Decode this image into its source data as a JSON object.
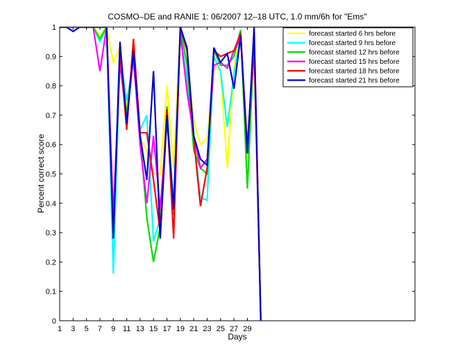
{
  "chart_data": {
    "type": "line",
    "title": "COSMO–DE and RANIE 1: 06/2007 12–18 UTC, 1.0 mm/6h for \"Ems\"",
    "xlabel": "Days",
    "ylabel": "Percent correct score",
    "xlim": [
      1,
      54
    ],
    "ylim": [
      0,
      1
    ],
    "xticks": [
      1,
      3,
      5,
      7,
      9,
      11,
      13,
      15,
      17,
      19,
      21,
      23,
      25,
      27,
      29
    ],
    "yticks": [
      0,
      0.1,
      0.2,
      0.3,
      0.4,
      0.5,
      0.6,
      0.7,
      0.8,
      0.9,
      1
    ],
    "ytick_labels": [
      "0",
      "0.1",
      "0.2",
      "0.3",
      "0.4",
      "0.5",
      "0.6",
      "0.7",
      "0.8",
      "0.9",
      "1"
    ],
    "legend_position": "top-right",
    "x": [
      1,
      2,
      3,
      4,
      5,
      6,
      7,
      8,
      9,
      10,
      11,
      12,
      13,
      14,
      15,
      16,
      17,
      18,
      19,
      20,
      21,
      22,
      23,
      24,
      25,
      26,
      27,
      28,
      29,
      30,
      31
    ],
    "series": [
      {
        "name": "forecast started 6 hrs before",
        "color": "#ffff00",
        "values": [
          1,
          1,
          1,
          1,
          1,
          1,
          0.97,
          1,
          0.88,
          0.93,
          0.72,
          0.9,
          0.62,
          0.58,
          0.5,
          0.5,
          0.8,
          0.52,
          1,
          0.88,
          0.68,
          0.6,
          0.62,
          0.87,
          0.85,
          0.52,
          0.86,
          0.98,
          0.55,
          0.9,
          0
        ]
      },
      {
        "name": "forecast started 9 hrs before",
        "color": "#00ffff",
        "values": [
          1,
          1,
          1,
          1,
          1,
          1,
          0.95,
          1,
          0.16,
          0.9,
          0.75,
          0.88,
          0.65,
          0.7,
          0.27,
          0.35,
          0.7,
          0.4,
          0.98,
          0.82,
          0.62,
          0.42,
          0.41,
          0.9,
          0.85,
          0.66,
          0.84,
          0.97,
          0.58,
          0.92,
          0
        ]
      },
      {
        "name": "forecast started 12 hrs before",
        "color": "#00dd00",
        "values": [
          1,
          1,
          1,
          1,
          1,
          1,
          0.96,
          1,
          0.3,
          0.9,
          0.7,
          0.92,
          0.63,
          0.35,
          0.2,
          0.32,
          0.73,
          0.36,
          1,
          0.87,
          0.58,
          0.52,
          0.5,
          0.92,
          0.87,
          0.87,
          0.9,
          0.99,
          0.45,
          0.95,
          0
        ]
      },
      {
        "name": "forecast started 15 hrs before",
        "color": "#ff00ff",
        "values": [
          1,
          1,
          1,
          1,
          1,
          1,
          0.85,
          1,
          0.36,
          0.88,
          0.68,
          0.9,
          0.6,
          0.4,
          0.63,
          0.38,
          0.68,
          0.38,
          0.98,
          0.78,
          0.63,
          0.52,
          0.55,
          0.87,
          0.88,
          0.86,
          0.92,
          0.96,
          0.6,
          0.93,
          0
        ]
      },
      {
        "name": "forecast started 18 hrs before",
        "color": "#ff0000",
        "values": [
          1,
          1,
          1,
          1,
          1,
          1,
          1,
          1,
          0.28,
          0.92,
          0.65,
          0.96,
          0.64,
          0.64,
          0.48,
          0.3,
          0.72,
          0.28,
          1,
          0.92,
          0.62,
          0.39,
          0.52,
          0.92,
          0.9,
          0.91,
          0.92,
          0.98,
          0.58,
          0.96,
          0
        ]
      },
      {
        "name": "forecast started 21 hrs before",
        "color": "#0000cc",
        "values": [
          1,
          1,
          0.985,
          1,
          1,
          1,
          1,
          1,
          0.28,
          0.95,
          0.67,
          0.92,
          0.63,
          0.48,
          0.85,
          0.28,
          0.7,
          0.38,
          1,
          0.93,
          0.63,
          0.55,
          0.53,
          0.93,
          0.88,
          0.91,
          0.79,
          0.97,
          0.57,
          1,
          0
        ]
      }
    ]
  }
}
